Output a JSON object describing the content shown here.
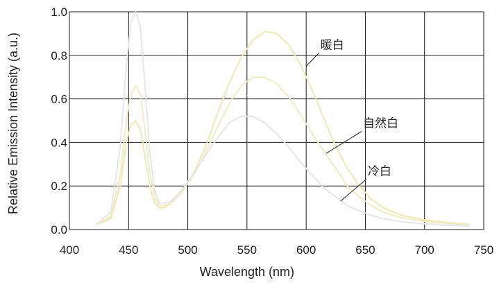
{
  "chart_data": {
    "type": "line",
    "xlabel": "Wavelength (nm)",
    "ylabel": "Relative Emission Intensity (a.u.)",
    "xlim": [
      400,
      750
    ],
    "ylim": [
      0,
      1.0
    ],
    "x_ticks": [
      "400",
      "450",
      "500",
      "550",
      "600",
      "650",
      "700",
      "750"
    ],
    "y_ticks": [
      "0.0",
      "0.2",
      "0.4",
      "0.6",
      "0.8",
      "1.0"
    ],
    "grid": true,
    "series": [
      {
        "name": "暖白",
        "color": "#efe8b0",
        "points": [
          [
            422,
            0.02
          ],
          [
            435,
            0.05
          ],
          [
            443,
            0.2
          ],
          [
            448,
            0.4
          ],
          [
            452,
            0.48
          ],
          [
            456,
            0.5
          ],
          [
            460,
            0.46
          ],
          [
            464,
            0.33
          ],
          [
            468,
            0.2
          ],
          [
            472,
            0.12
          ],
          [
            476,
            0.1
          ],
          [
            480,
            0.1
          ],
          [
            486,
            0.12
          ],
          [
            495,
            0.17
          ],
          [
            505,
            0.26
          ],
          [
            515,
            0.38
          ],
          [
            525,
            0.53
          ],
          [
            535,
            0.67
          ],
          [
            545,
            0.79
          ],
          [
            555,
            0.87
          ],
          [
            565,
            0.91
          ],
          [
            575,
            0.9
          ],
          [
            585,
            0.85
          ],
          [
            595,
            0.76
          ],
          [
            605,
            0.64
          ],
          [
            615,
            0.51
          ],
          [
            625,
            0.38
          ],
          [
            635,
            0.28
          ],
          [
            645,
            0.2
          ],
          [
            655,
            0.14
          ],
          [
            665,
            0.1
          ],
          [
            680,
            0.066
          ],
          [
            700,
            0.044
          ],
          [
            720,
            0.032
          ],
          [
            738,
            0.025
          ]
        ]
      },
      {
        "name": "自然白",
        "color": "#f0ebc4",
        "points": [
          [
            422,
            0.02
          ],
          [
            435,
            0.06
          ],
          [
            443,
            0.25
          ],
          [
            448,
            0.5
          ],
          [
            452,
            0.62
          ],
          [
            456,
            0.66
          ],
          [
            460,
            0.62
          ],
          [
            464,
            0.45
          ],
          [
            468,
            0.26
          ],
          [
            472,
            0.15
          ],
          [
            476,
            0.11
          ],
          [
            480,
            0.11
          ],
          [
            486,
            0.12
          ],
          [
            495,
            0.17
          ],
          [
            505,
            0.25
          ],
          [
            515,
            0.35
          ],
          [
            525,
            0.47
          ],
          [
            535,
            0.58
          ],
          [
            545,
            0.66
          ],
          [
            555,
            0.7
          ],
          [
            565,
            0.7
          ],
          [
            575,
            0.67
          ],
          [
            585,
            0.61
          ],
          [
            595,
            0.53
          ],
          [
            605,
            0.44
          ],
          [
            615,
            0.36
          ],
          [
            625,
            0.28
          ],
          [
            635,
            0.2
          ],
          [
            645,
            0.15
          ],
          [
            655,
            0.11
          ],
          [
            665,
            0.08
          ],
          [
            680,
            0.055
          ],
          [
            700,
            0.038
          ],
          [
            720,
            0.028
          ],
          [
            738,
            0.022
          ]
        ]
      },
      {
        "name": "冷白",
        "color": "#e6e6e6",
        "points": [
          [
            422,
            0.02
          ],
          [
            435,
            0.08
          ],
          [
            443,
            0.38
          ],
          [
            448,
            0.75
          ],
          [
            452,
            0.95
          ],
          [
            456,
            1.0
          ],
          [
            460,
            0.93
          ],
          [
            464,
            0.65
          ],
          [
            468,
            0.35
          ],
          [
            472,
            0.18
          ],
          [
            476,
            0.12
          ],
          [
            480,
            0.12
          ],
          [
            486,
            0.13
          ],
          [
            495,
            0.18
          ],
          [
            505,
            0.26
          ],
          [
            515,
            0.34
          ],
          [
            525,
            0.42
          ],
          [
            535,
            0.49
          ],
          [
            545,
            0.52
          ],
          [
            555,
            0.52
          ],
          [
            565,
            0.49
          ],
          [
            575,
            0.44
          ],
          [
            585,
            0.38
          ],
          [
            595,
            0.31
          ],
          [
            605,
            0.25
          ],
          [
            615,
            0.19
          ],
          [
            625,
            0.15
          ],
          [
            635,
            0.11
          ],
          [
            645,
            0.085
          ],
          [
            655,
            0.065
          ],
          [
            665,
            0.05
          ],
          [
            680,
            0.036
          ],
          [
            700,
            0.026
          ],
          [
            720,
            0.02
          ],
          [
            738,
            0.016
          ]
        ]
      }
    ],
    "annotations": [
      {
        "label": "暖白",
        "series": "暖白",
        "at": [
          600,
          0.75
        ],
        "text_at": [
          612,
          0.83
        ]
      },
      {
        "label": "自然白",
        "series": "自然白",
        "at": [
          617,
          0.35
        ],
        "text_at": [
          648,
          0.47
        ]
      },
      {
        "label": "冷白",
        "series": "冷白",
        "at": [
          629,
          0.13
        ],
        "text_at": [
          652,
          0.25
        ]
      }
    ],
    "colors": {
      "grid": "#1a1a1a",
      "plot_border": "#1a1a1a",
      "annotation_line": "#1a1a1a"
    }
  }
}
